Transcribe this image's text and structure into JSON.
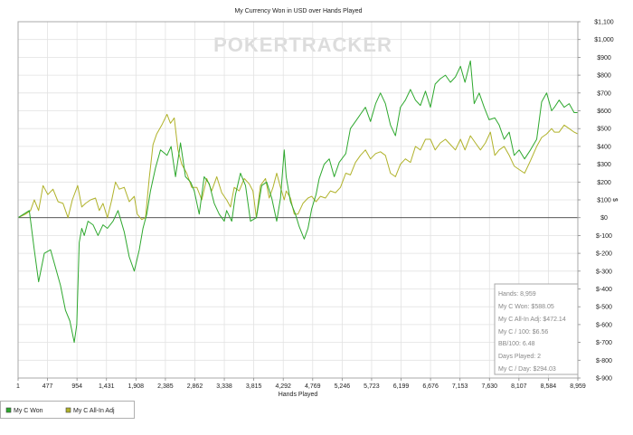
{
  "chart_data": {
    "type": "line",
    "title": "My Currency Won in USD over Hands Played",
    "xlabel": "Hands Played",
    "ylabel": "$",
    "watermark": "POKERTRACKER",
    "xlim": [
      1,
      8959
    ],
    "ylim": [
      -900,
      1100
    ],
    "x_ticks": [
      "1",
      "477",
      "954",
      "1,431",
      "1,908",
      "2,385",
      "2,862",
      "3,338",
      "3,815",
      "4,292",
      "4,769",
      "5,246",
      "5,723",
      "6,199",
      "6,676",
      "7,153",
      "7,630",
      "8,107",
      "8,584",
      "8,959"
    ],
    "y_ticks": [
      {
        "v": 1100,
        "label": "$1,100"
      },
      {
        "v": 1000,
        "label": "$1,000"
      },
      {
        "v": 900,
        "label": "$900"
      },
      {
        "v": 800,
        "label": "$800"
      },
      {
        "v": 700,
        "label": "$700"
      },
      {
        "v": 600,
        "label": "$600"
      },
      {
        "v": 500,
        "label": "$500"
      },
      {
        "v": 400,
        "label": "$400"
      },
      {
        "v": 300,
        "label": "$300"
      },
      {
        "v": 200,
        "label": "$200"
      },
      {
        "v": 100,
        "label": "$100"
      },
      {
        "v": 0,
        "label": "$0"
      },
      {
        "v": -100,
        "label": "$-100"
      },
      {
        "v": -200,
        "label": "$-200"
      },
      {
        "v": -300,
        "label": "$-300"
      },
      {
        "v": -400,
        "label": "$-400"
      },
      {
        "v": -500,
        "label": "$-500"
      },
      {
        "v": -600,
        "label": "$-600"
      },
      {
        "v": -700,
        "label": "$-700"
      },
      {
        "v": -800,
        "label": "$-800"
      },
      {
        "v": -900,
        "label": "$-900"
      }
    ],
    "grid": true,
    "legend_position": "bottom-left",
    "series": [
      {
        "name": "My C Won",
        "color": "#2ea82e",
        "points": [
          [
            1,
            0
          ],
          [
            180,
            40
          ],
          [
            260,
            -180
          ],
          [
            330,
            -360
          ],
          [
            420,
            -200
          ],
          [
            520,
            -180
          ],
          [
            600,
            -280
          ],
          [
            680,
            -380
          ],
          [
            760,
            -520
          ],
          [
            830,
            -580
          ],
          [
            900,
            -700
          ],
          [
            940,
            -600
          ],
          [
            980,
            -140
          ],
          [
            1020,
            -60
          ],
          [
            1060,
            -100
          ],
          [
            1120,
            -20
          ],
          [
            1200,
            -40
          ],
          [
            1280,
            -100
          ],
          [
            1360,
            -40
          ],
          [
            1431,
            -60
          ],
          [
            1520,
            -20
          ],
          [
            1600,
            40
          ],
          [
            1700,
            -80
          ],
          [
            1780,
            -220
          ],
          [
            1860,
            -300
          ],
          [
            1940,
            -180
          ],
          [
            2000,
            -60
          ],
          [
            2060,
            20
          ],
          [
            2120,
            150
          ],
          [
            2200,
            280
          ],
          [
            2280,
            380
          ],
          [
            2385,
            350
          ],
          [
            2450,
            400
          ],
          [
            2520,
            230
          ],
          [
            2600,
            420
          ],
          [
            2680,
            230
          ],
          [
            2762,
            200
          ],
          [
            2820,
            150
          ],
          [
            2900,
            20
          ],
          [
            2980,
            230
          ],
          [
            3060,
            190
          ],
          [
            3140,
            80
          ],
          [
            3220,
            20
          ],
          [
            3300,
            -20
          ],
          [
            3338,
            40
          ],
          [
            3420,
            -20
          ],
          [
            3480,
            130
          ],
          [
            3560,
            250
          ],
          [
            3640,
            180
          ],
          [
            3720,
            -20
          ],
          [
            3815,
            0
          ],
          [
            3900,
            180
          ],
          [
            3980,
            200
          ],
          [
            4060,
            110
          ],
          [
            4140,
            -20
          ],
          [
            4200,
            110
          ],
          [
            4260,
            380
          ],
          [
            4292,
            230
          ],
          [
            4360,
            90
          ],
          [
            4440,
            20
          ],
          [
            4500,
            -50
          ],
          [
            4580,
            -120
          ],
          [
            4640,
            -60
          ],
          [
            4700,
            50
          ],
          [
            4769,
            130
          ],
          [
            4820,
            220
          ],
          [
            4900,
            300
          ],
          [
            4980,
            330
          ],
          [
            5060,
            230
          ],
          [
            5140,
            310
          ],
          [
            5246,
            360
          ],
          [
            5320,
            500
          ],
          [
            5400,
            540
          ],
          [
            5480,
            580
          ],
          [
            5560,
            620
          ],
          [
            5640,
            540
          ],
          [
            5723,
            640
          ],
          [
            5800,
            700
          ],
          [
            5880,
            640
          ],
          [
            5960,
            520
          ],
          [
            6040,
            460
          ],
          [
            6120,
            620
          ],
          [
            6199,
            660
          ],
          [
            6280,
            720
          ],
          [
            6360,
            660
          ],
          [
            6440,
            630
          ],
          [
            6520,
            710
          ],
          [
            6600,
            620
          ],
          [
            6676,
            750
          ],
          [
            6760,
            780
          ],
          [
            6840,
            800
          ],
          [
            6920,
            760
          ],
          [
            7000,
            790
          ],
          [
            7080,
            850
          ],
          [
            7153,
            760
          ],
          [
            7240,
            880
          ],
          [
            7300,
            640
          ],
          [
            7380,
            700
          ],
          [
            7460,
            620
          ],
          [
            7540,
            550
          ],
          [
            7630,
            560
          ],
          [
            7700,
            520
          ],
          [
            7780,
            440
          ],
          [
            7860,
            480
          ],
          [
            7940,
            350
          ],
          [
            8020,
            380
          ],
          [
            8107,
            330
          ],
          [
            8200,
            380
          ],
          [
            8300,
            440
          ],
          [
            8380,
            650
          ],
          [
            8460,
            700
          ],
          [
            8540,
            600
          ],
          [
            8584,
            620
          ],
          [
            8660,
            660
          ],
          [
            8740,
            620
          ],
          [
            8820,
            640
          ],
          [
            8900,
            590
          ],
          [
            8959,
            590
          ]
        ]
      },
      {
        "name": "My C All-In Adj",
        "color": "#b0b22a",
        "points": [
          [
            1,
            0
          ],
          [
            120,
            20
          ],
          [
            200,
            40
          ],
          [
            260,
            100
          ],
          [
            330,
            40
          ],
          [
            400,
            180
          ],
          [
            477,
            130
          ],
          [
            560,
            160
          ],
          [
            640,
            90
          ],
          [
            720,
            80
          ],
          [
            800,
            0
          ],
          [
            870,
            100
          ],
          [
            954,
            180
          ],
          [
            1020,
            60
          ],
          [
            1080,
            80
          ],
          [
            1160,
            100
          ],
          [
            1240,
            110
          ],
          [
            1300,
            40
          ],
          [
            1360,
            80
          ],
          [
            1431,
            0
          ],
          [
            1500,
            100
          ],
          [
            1560,
            200
          ],
          [
            1620,
            160
          ],
          [
            1700,
            170
          ],
          [
            1780,
            90
          ],
          [
            1860,
            120
          ],
          [
            1908,
            20
          ],
          [
            1980,
            -10
          ],
          [
            2040,
            0
          ],
          [
            2100,
            220
          ],
          [
            2160,
            410
          ],
          [
            2220,
            470
          ],
          [
            2300,
            520
          ],
          [
            2385,
            580
          ],
          [
            2440,
            530
          ],
          [
            2500,
            560
          ],
          [
            2560,
            380
          ],
          [
            2620,
            300
          ],
          [
            2700,
            250
          ],
          [
            2780,
            170
          ],
          [
            2862,
            170
          ],
          [
            2940,
            100
          ],
          [
            3020,
            220
          ],
          [
            3100,
            150
          ],
          [
            3180,
            230
          ],
          [
            3260,
            140
          ],
          [
            3338,
            100
          ],
          [
            3400,
            60
          ],
          [
            3460,
            170
          ],
          [
            3540,
            150
          ],
          [
            3620,
            220
          ],
          [
            3700,
            190
          ],
          [
            3760,
            150
          ],
          [
            3815,
            0
          ],
          [
            3880,
            180
          ],
          [
            3960,
            220
          ],
          [
            4020,
            110
          ],
          [
            4080,
            170
          ],
          [
            4140,
            250
          ],
          [
            4200,
            170
          ],
          [
            4260,
            100
          ],
          [
            4292,
            150
          ],
          [
            4360,
            110
          ],
          [
            4420,
            20
          ],
          [
            4480,
            20
          ],
          [
            4560,
            80
          ],
          [
            4640,
            110
          ],
          [
            4700,
            120
          ],
          [
            4769,
            90
          ],
          [
            4840,
            120
          ],
          [
            4920,
            110
          ],
          [
            5000,
            150
          ],
          [
            5080,
            140
          ],
          [
            5160,
            170
          ],
          [
            5246,
            250
          ],
          [
            5320,
            240
          ],
          [
            5400,
            310
          ],
          [
            5480,
            350
          ],
          [
            5560,
            380
          ],
          [
            5640,
            330
          ],
          [
            5723,
            360
          ],
          [
            5800,
            370
          ],
          [
            5880,
            350
          ],
          [
            5960,
            250
          ],
          [
            6040,
            230
          ],
          [
            6120,
            300
          ],
          [
            6199,
            330
          ],
          [
            6280,
            310
          ],
          [
            6360,
            400
          ],
          [
            6440,
            380
          ],
          [
            6520,
            440
          ],
          [
            6600,
            440
          ],
          [
            6676,
            380
          ],
          [
            6760,
            420
          ],
          [
            6840,
            440
          ],
          [
            6920,
            410
          ],
          [
            7000,
            380
          ],
          [
            7080,
            440
          ],
          [
            7153,
            380
          ],
          [
            7240,
            460
          ],
          [
            7320,
            420
          ],
          [
            7400,
            380
          ],
          [
            7480,
            420
          ],
          [
            7560,
            480
          ],
          [
            7630,
            350
          ],
          [
            7700,
            380
          ],
          [
            7780,
            400
          ],
          [
            7860,
            350
          ],
          [
            7940,
            290
          ],
          [
            8020,
            270
          ],
          [
            8107,
            250
          ],
          [
            8200,
            320
          ],
          [
            8300,
            400
          ],
          [
            8380,
            450
          ],
          [
            8460,
            470
          ],
          [
            8540,
            500
          ],
          [
            8584,
            480
          ],
          [
            8660,
            480
          ],
          [
            8740,
            520
          ],
          [
            8820,
            500
          ],
          [
            8900,
            480
          ],
          [
            8959,
            470
          ]
        ]
      }
    ]
  },
  "stats": [
    "Hands: 8,959",
    "My C Won: $588.05",
    "My C All-In Adj: $472.14",
    "My C / 100: $6.56",
    "BB/100: 6.48",
    "Days Played: 2",
    "My C / Day: $294.03"
  ]
}
